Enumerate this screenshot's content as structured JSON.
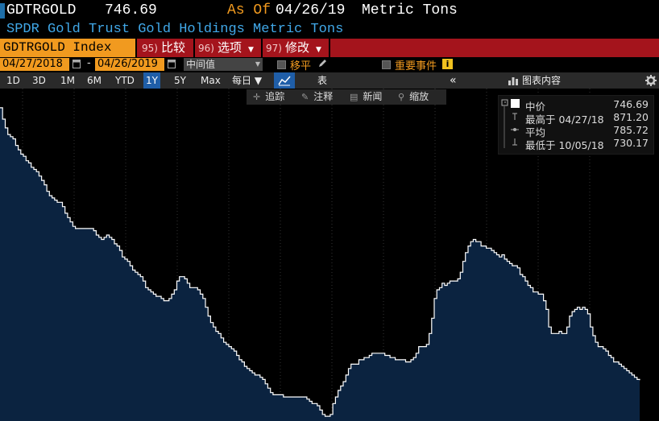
{
  "header": {
    "ticker": "GDTRGOLD",
    "last_price": "746.69",
    "as_of_label": "As Of",
    "as_of_date": "04/26/19",
    "units": "Metric Tons",
    "description": "SPDR Gold Trust Gold Holdings Metric Tons"
  },
  "function_bar": {
    "security": "GDTRGOLD Index",
    "compare": {
      "num": "95)",
      "label": "比较"
    },
    "options": {
      "num": "96)",
      "label": "选项"
    },
    "edit": {
      "num": "97)",
      "label": "修改"
    }
  },
  "date_bar": {
    "start_date": "04/27/2018",
    "dash": "-",
    "end_date": "04/26/2019",
    "mode": "中间值",
    "shift_label": "移平",
    "events_label": "重要事件"
  },
  "toolbar": {
    "ranges": [
      "1D",
      "3D",
      "1M",
      "6M",
      "YTD",
      "1Y",
      "5Y",
      "Max"
    ],
    "active_range": "1Y",
    "frequency": "每日 ▼",
    "table_label": "表",
    "chart_content": "图表内容"
  },
  "tools": {
    "track": "追踪",
    "annotate": "注释",
    "news": "新闻",
    "zoom": "缩放"
  },
  "legend": {
    "mid_label": "中价",
    "mid_value": "746.69",
    "high_label": "最高于 04/27/18",
    "high_value": "871.20",
    "avg_label": "平均",
    "avg_value": "785.72",
    "low_label": "最低于 10/05/18",
    "low_value": "730.17"
  },
  "colors": {
    "accent_orange": "#f19a1f",
    "function_bar_red": "#a4141c",
    "description_blue": "#41a8e8",
    "area_fill": "#0b2340",
    "line": "#ffffff"
  },
  "chart_data": {
    "type": "area",
    "x_start": "04/27/18",
    "x_end": "04/26/19",
    "ylim": [
      728,
      880
    ],
    "values": [
      871.2,
      866,
      862,
      859,
      858,
      857,
      854,
      852,
      850,
      849,
      847,
      846,
      844,
      843,
      842,
      840,
      838,
      836,
      833,
      831,
      830,
      829,
      828,
      828,
      826,
      823,
      821,
      819,
      817,
      816,
      816,
      816,
      816,
      816,
      816,
      816,
      815,
      813,
      812,
      811,
      812,
      813,
      812,
      811,
      809,
      808,
      806,
      803,
      802,
      801,
      799,
      797,
      796,
      795,
      794,
      792,
      789,
      788,
      787,
      786,
      785,
      785,
      784,
      783,
      783,
      784,
      786,
      788,
      792,
      794,
      794,
      793,
      791,
      789,
      789,
      789,
      788,
      786,
      784,
      780,
      776,
      773,
      771,
      769,
      768,
      766,
      764,
      763,
      762,
      761,
      760,
      758,
      756,
      755,
      753,
      752,
      751,
      750,
      749,
      749,
      748,
      747,
      745,
      743,
      741,
      740,
      740,
      740,
      740,
      739,
      739,
      739,
      739,
      739,
      739,
      739,
      739,
      739,
      738,
      737,
      736,
      736,
      735,
      733,
      731,
      730.17,
      730.17,
      731,
      736,
      739,
      742,
      744,
      746,
      749,
      752,
      754,
      754,
      754,
      756,
      756,
      757,
      757,
      758,
      759,
      759,
      759,
      759,
      759,
      758,
      758,
      757,
      757,
      756,
      756,
      756,
      756,
      755,
      755,
      756,
      757,
      759,
      762,
      762,
      762,
      763,
      768,
      775,
      784,
      788,
      789,
      791,
      790,
      791,
      792,
      792,
      792,
      793,
      796,
      801,
      805,
      808,
      810,
      811,
      810,
      810,
      808,
      808,
      807,
      807,
      806,
      805,
      804,
      803,
      804,
      802,
      801,
      800,
      799,
      799,
      798,
      795,
      794,
      792,
      790,
      789,
      787,
      787,
      786,
      786,
      783,
      779,
      771,
      768,
      768,
      768,
      769,
      768,
      768,
      771,
      776,
      778,
      779,
      780,
      779,
      780,
      779,
      777,
      771,
      767,
      764,
      762,
      762,
      761,
      760,
      758,
      757,
      755,
      755,
      754,
      753,
      752,
      751,
      750,
      749,
      748,
      747,
      746.69
    ]
  }
}
